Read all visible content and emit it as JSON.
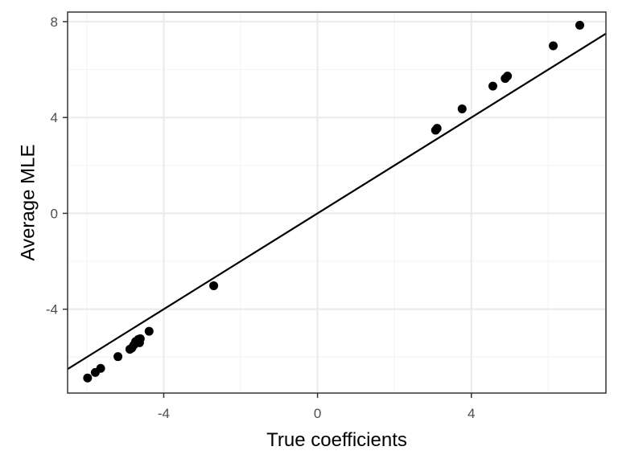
{
  "chart_data": {
    "type": "scatter",
    "title": "",
    "xlabel": "True coefficients",
    "ylabel": "Average MLE",
    "xlim": [
      -6.5,
      7.5
    ],
    "ylim": [
      -7.5,
      8.4
    ],
    "x_ticks": [
      -4,
      0,
      4
    ],
    "x_tick_labels": [
      "-4",
      "0",
      "4"
    ],
    "y_ticks": [
      -4,
      0,
      4,
      8
    ],
    "y_tick_labels": [
      "-4",
      "0",
      "4",
      "8"
    ],
    "grid": true,
    "reference_line": {
      "slope": 1,
      "intercept": 0
    },
    "points": [
      {
        "x": -5.98,
        "y": -6.87
      },
      {
        "x": -5.78,
        "y": -6.64
      },
      {
        "x": -5.64,
        "y": -6.47
      },
      {
        "x": -5.19,
        "y": -5.98
      },
      {
        "x": -4.88,
        "y": -5.67
      },
      {
        "x": -4.83,
        "y": -5.62
      },
      {
        "x": -4.78,
        "y": -5.5
      },
      {
        "x": -4.73,
        "y": -5.35
      },
      {
        "x": -4.66,
        "y": -5.26
      },
      {
        "x": -4.61,
        "y": -5.23
      },
      {
        "x": -4.63,
        "y": -5.4
      },
      {
        "x": -4.38,
        "y": -4.92
      },
      {
        "x": -2.7,
        "y": -3.02
      },
      {
        "x": 3.07,
        "y": 3.47
      },
      {
        "x": 3.11,
        "y": 3.55
      },
      {
        "x": 3.76,
        "y": 4.36
      },
      {
        "x": 4.56,
        "y": 5.31
      },
      {
        "x": 4.88,
        "y": 5.63
      },
      {
        "x": 4.94,
        "y": 5.73
      },
      {
        "x": 6.13,
        "y": 6.99
      },
      {
        "x": 6.82,
        "y": 7.85
      }
    ],
    "colors": {
      "points": "#000000",
      "line": "#000000",
      "grid_major": "#ebebeb",
      "grid_minor": "#f5f5f5",
      "panel_border": "#333333"
    }
  }
}
